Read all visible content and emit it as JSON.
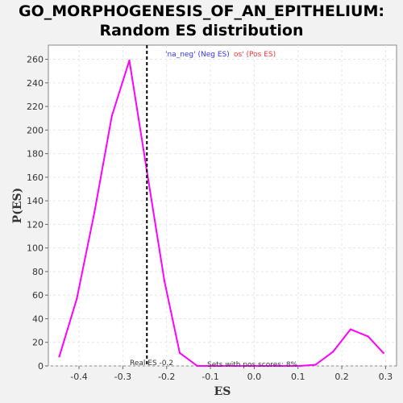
{
  "chart_data": {
    "type": "line",
    "title_lines": [
      "GO_MORPHOGENESIS_OF_AN_EPITHELIUM:",
      "Random ES distribution"
    ],
    "xlabel": "ES",
    "ylabel": "P(ES)",
    "xlim": [
      -0.47,
      0.325
    ],
    "ylim": [
      0,
      272
    ],
    "x_ticks": [
      -0.4,
      -0.3,
      -0.2,
      -0.1,
      0.0,
      0.1,
      0.2,
      0.3
    ],
    "x_tick_labels": [
      "-0.4",
      "-0.3",
      "-0.2",
      "-0.1",
      "0.0",
      "0.1",
      "0.2",
      "0.3"
    ],
    "y_ticks": [
      0,
      20,
      40,
      60,
      80,
      100,
      120,
      140,
      160,
      180,
      200,
      220,
      240,
      260
    ],
    "grid": true,
    "series": [
      {
        "color": "#ff00ff",
        "x": [
          -0.445,
          -0.405,
          -0.365,
          -0.325,
          -0.285,
          -0.245,
          -0.205,
          -0.17,
          -0.13,
          -0.09,
          -0.05,
          -0.01,
          0.03,
          0.07,
          0.105,
          0.14,
          0.18,
          0.22,
          0.26,
          0.295
        ],
        "y": [
          8,
          57,
          130,
          212,
          259,
          165,
          72,
          11,
          0,
          0,
          0,
          0,
          0,
          0,
          0,
          1,
          12,
          31,
          25,
          11
        ]
      }
    ],
    "real_es": -0.245,
    "legend": [
      {
        "text": "'na_neg' (Neg ES)",
        "color": "#3333ff"
      },
      {
        "text": "os' (Pos ES)",
        "color": "#ff3333"
      }
    ],
    "annotations": {
      "real_es_label": "Real ES -0.2",
      "pos_scores_label": "Sets with pos scores: 8%"
    }
  }
}
